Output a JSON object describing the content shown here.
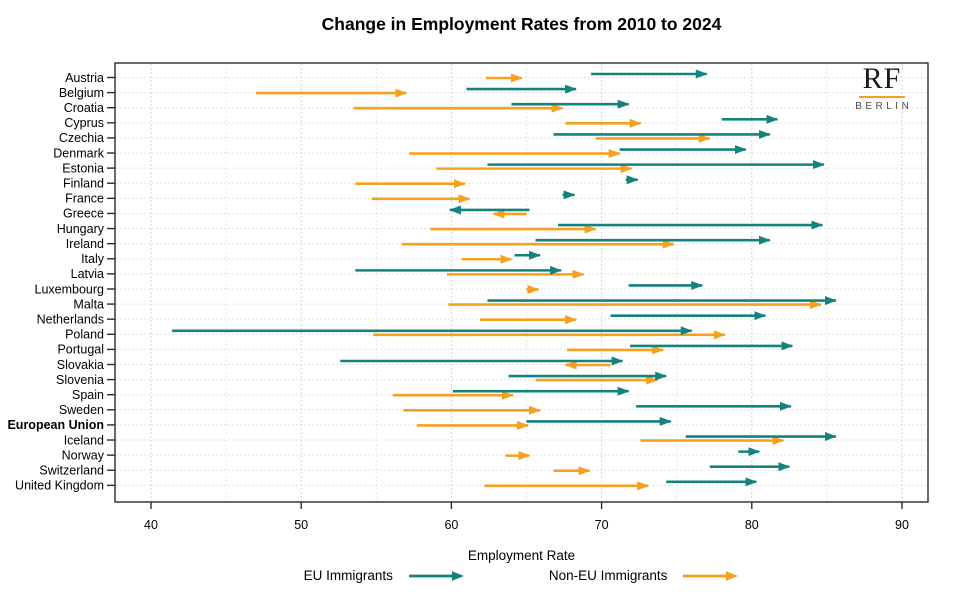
{
  "title": "Change in Employment Rates from 2010 to 2024",
  "logo": {
    "line1": "RF",
    "line2": "BERLIN"
  },
  "colors": {
    "eu": "#15837D",
    "non_eu": "#F6A01F",
    "grid": "#e2e2e2",
    "axis": "#2b2b2b"
  },
  "chart_data": {
    "type": "arrow",
    "title": "Change in Employment Rates from 2010 to 2024",
    "xlabel": "Employment Rate",
    "xlim": [
      37.5,
      91.8
    ],
    "x_major_ticks": [
      40,
      50,
      60,
      70,
      80,
      90
    ],
    "x_minor_gridlines": [
      45,
      55,
      65,
      75,
      85
    ],
    "grid": true,
    "legend_position": "bottom",
    "note": "each country has two arrows drawn from the 2010 value to the 2024 value",
    "series": [
      {
        "key": "eu",
        "name": "EU Immigrants",
        "color": "#15837D"
      },
      {
        "key": "non_eu",
        "name": "Non-EU Immigrants",
        "color": "#F6A01F"
      }
    ],
    "countries": [
      {
        "name": "Austria",
        "bold": false,
        "eu": [
          69.3,
          77.0
        ],
        "non_eu": [
          62.3,
          64.7
        ]
      },
      {
        "name": "Belgium",
        "bold": false,
        "eu": [
          61.0,
          68.3
        ],
        "non_eu": [
          47.0,
          57.0
        ]
      },
      {
        "name": "Croatia",
        "bold": false,
        "eu": [
          64.0,
          71.8
        ],
        "non_eu": [
          53.5,
          67.4
        ]
      },
      {
        "name": "Cyprus",
        "bold": false,
        "eu": [
          78.0,
          81.7
        ],
        "non_eu": [
          67.6,
          72.6
        ]
      },
      {
        "name": "Czechia",
        "bold": false,
        "eu": [
          66.8,
          81.2
        ],
        "non_eu": [
          69.6,
          77.2
        ]
      },
      {
        "name": "Denmark",
        "bold": false,
        "eu": [
          71.2,
          79.6
        ],
        "non_eu": [
          57.2,
          71.2
        ]
      },
      {
        "name": "Estonia",
        "bold": false,
        "eu": [
          62.4,
          84.8
        ],
        "non_eu": [
          59.0,
          72.0
        ]
      },
      {
        "name": "Finland",
        "bold": false,
        "eu": [
          71.6,
          72.4
        ],
        "non_eu": [
          53.6,
          60.9
        ]
      },
      {
        "name": "France",
        "bold": false,
        "eu": [
          67.4,
          68.2
        ],
        "non_eu": [
          54.7,
          61.2
        ]
      },
      {
        "name": "Greece",
        "bold": false,
        "eu": [
          65.2,
          59.9
        ],
        "non_eu": [
          65.0,
          62.8
        ]
      },
      {
        "name": "Hungary",
        "bold": false,
        "eu": [
          67.1,
          84.7
        ],
        "non_eu": [
          58.6,
          69.6
        ]
      },
      {
        "name": "Ireland",
        "bold": false,
        "eu": [
          65.6,
          81.2
        ],
        "non_eu": [
          56.7,
          74.8
        ]
      },
      {
        "name": "Italy",
        "bold": false,
        "eu": [
          64.2,
          65.9
        ],
        "non_eu": [
          60.7,
          64.0
        ]
      },
      {
        "name": "Latvia",
        "bold": false,
        "eu": [
          53.6,
          67.3
        ],
        "non_eu": [
          59.7,
          68.8
        ]
      },
      {
        "name": "Luxembourg",
        "bold": false,
        "eu": [
          71.8,
          76.7
        ],
        "non_eu": [
          65.0,
          65.8
        ]
      },
      {
        "name": "Malta",
        "bold": false,
        "eu": [
          62.4,
          85.6
        ],
        "non_eu": [
          59.8,
          84.6
        ]
      },
      {
        "name": "Netherlands",
        "bold": false,
        "eu": [
          70.6,
          80.9
        ],
        "non_eu": [
          61.9,
          68.3
        ]
      },
      {
        "name": "Poland",
        "bold": false,
        "eu": [
          41.4,
          76.0
        ],
        "non_eu": [
          54.8,
          78.2
        ]
      },
      {
        "name": "Portugal",
        "bold": false,
        "eu": [
          71.9,
          82.7
        ],
        "non_eu": [
          67.7,
          74.1
        ]
      },
      {
        "name": "Slovakia",
        "bold": false,
        "eu": [
          52.6,
          71.4
        ],
        "non_eu": [
          70.6,
          67.6
        ]
      },
      {
        "name": "Slovenia",
        "bold": false,
        "eu": [
          63.8,
          74.3
        ],
        "non_eu": [
          65.6,
          73.7
        ]
      },
      {
        "name": "Spain",
        "bold": false,
        "eu": [
          60.1,
          71.8
        ],
        "non_eu": [
          56.1,
          64.1
        ]
      },
      {
        "name": "Sweden",
        "bold": false,
        "eu": [
          72.3,
          82.6
        ],
        "non_eu": [
          56.8,
          65.9
        ]
      },
      {
        "name": "European Union",
        "bold": true,
        "eu": [
          65.0,
          74.6
        ],
        "non_eu": [
          57.7,
          65.1
        ]
      },
      {
        "name": "Iceland",
        "bold": false,
        "eu": [
          75.6,
          85.6
        ],
        "non_eu": [
          72.6,
          82.1
        ]
      },
      {
        "name": "Norway",
        "bold": false,
        "eu": [
          79.1,
          80.5
        ],
        "non_eu": [
          63.6,
          65.2
        ]
      },
      {
        "name": "Switzerland",
        "bold": false,
        "eu": [
          77.2,
          82.5
        ],
        "non_eu": [
          66.8,
          69.2
        ]
      },
      {
        "name": "United Kingdom",
        "bold": false,
        "eu": [
          74.3,
          80.3
        ],
        "non_eu": [
          62.2,
          73.1
        ]
      }
    ]
  }
}
